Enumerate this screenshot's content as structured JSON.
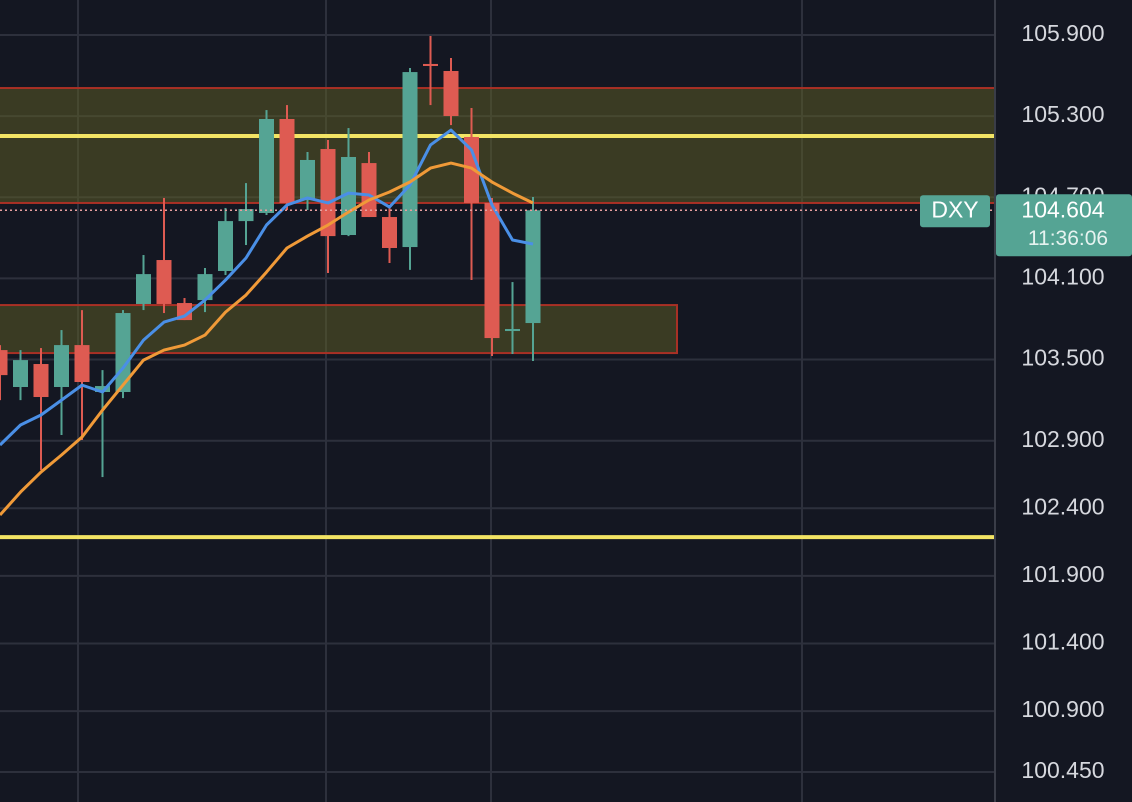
{
  "chart_data": {
    "type": "candlestick",
    "symbol": "DXY",
    "countdown": "11:36:06",
    "up_color": "#55a494",
    "down_color": "#de5b52",
    "open": [
      103.57,
      103.297,
      103.467,
      103.297,
      103.607,
      103.26,
      103.26,
      103.911,
      104.236,
      103.918,
      103.94,
      104.155,
      104.524,
      104.584,
      105.279,
      104.68,
      105.057,
      104.421,
      104.953,
      104.554,
      104.332,
      105.686,
      105.634,
      105.146,
      104.658,
      103.711,
      103.77
    ],
    "high": [
      103.607,
      103.57,
      103.585,
      103.718,
      103.866,
      103.422,
      103.866,
      104.273,
      104.695,
      103.955,
      104.177,
      104.621,
      104.805,
      105.345,
      105.382,
      105.035,
      105.124,
      105.212,
      105.035,
      104.628,
      105.656,
      105.893,
      105.73,
      105.36,
      104.695,
      104.073,
      104.702
    ],
    "low": [
      103.2,
      103.2,
      102.683,
      102.942,
      102.905,
      102.631,
      103.215,
      103.866,
      103.844,
      103.792,
      103.851,
      104.125,
      104.347,
      104.569,
      104.606,
      104.606,
      104.14,
      104.413,
      104.554,
      104.214,
      104.163,
      105.382,
      105.234,
      104.088,
      103.526,
      103.541,
      103.489
    ],
    "close": [
      103.385,
      103.496,
      103.223,
      103.607,
      103.334,
      103.304,
      103.844,
      104.132,
      103.911,
      103.792,
      104.132,
      104.524,
      104.613,
      105.279,
      104.658,
      104.976,
      104.413,
      104.998,
      104.554,
      104.325,
      105.626,
      105.671,
      105.301,
      104.658,
      103.659,
      103.726,
      104.604
    ],
    "series": [
      {
        "color": "#4a8fe6",
        "values": [
          102.868,
          103.016,
          103.09,
          103.2,
          103.311,
          103.26,
          103.437,
          103.644,
          103.777,
          103.822,
          103.94,
          104.088,
          104.251,
          104.495,
          104.643,
          104.695,
          104.658,
          104.731,
          104.717,
          104.628,
          104.791,
          105.087,
          105.197,
          105.05,
          104.643,
          104.384,
          104.354
        ]
      },
      {
        "color": "#f09a38",
        "values": [
          102.35,
          102.52,
          102.668,
          102.794,
          102.927,
          103.126,
          103.311,
          103.496,
          103.57,
          103.607,
          103.681,
          103.851,
          103.977,
          104.147,
          104.325,
          104.413,
          104.495,
          104.591,
          104.68,
          104.739,
          104.813,
          104.916,
          104.953,
          104.916,
          104.813,
          104.731,
          104.658
        ]
      }
    ],
    "zones": [
      {
        "top": 105.508,
        "bottom": 104.658
      },
      {
        "top": 103.903,
        "bottom": 103.548
      }
    ],
    "levels": [
      105.153,
      102.187
    ],
    "level_color": "#f3e464",
    "ylim": [
      100.228,
      106.159
    ],
    "yticks": [
      {
        "value": 105.9,
        "label": "105.900"
      },
      {
        "value": 105.3,
        "label": "105.300"
      },
      {
        "value": 104.7,
        "label": "104.700"
      },
      {
        "value": 104.1,
        "label": "104.100"
      },
      {
        "value": 103.5,
        "label": "103.500"
      },
      {
        "value": 102.9,
        "label": "102.900"
      },
      {
        "value": 102.4,
        "label": "102.400"
      },
      {
        "value": 101.9,
        "label": "101.900"
      },
      {
        "value": 101.4,
        "label": "101.400"
      },
      {
        "value": 100.9,
        "label": "100.900"
      },
      {
        "value": 100.45,
        "label": "100.450"
      }
    ],
    "grid": true
  }
}
